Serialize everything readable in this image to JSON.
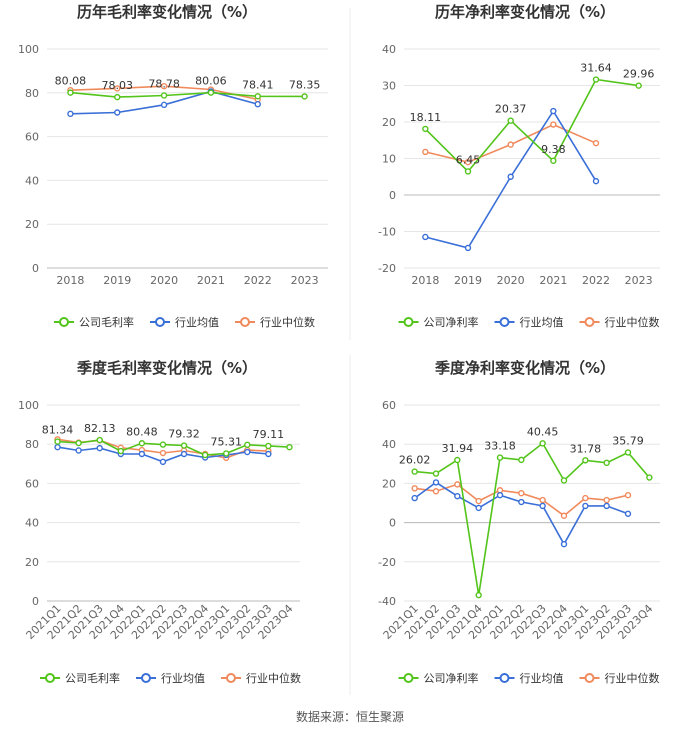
{
  "colors": {
    "company": "#52c41a",
    "industry_avg": "#3a6fd8",
    "industry_median": "#f08a5d",
    "grid": "#e6e6e6",
    "axis": "#bbbbbb",
    "text": "#333333",
    "tick": "#666666"
  },
  "chart_data": [
    {
      "type": "line",
      "title": "历年毛利率变化情况（%）",
      "categories": [
        "2018",
        "2019",
        "2020",
        "2021",
        "2022",
        "2023"
      ],
      "ylim": [
        0,
        100
      ],
      "yticks": [
        0,
        20,
        40,
        60,
        80,
        100
      ],
      "rotate_x_labels": false,
      "series": [
        {
          "name": "公司毛利率",
          "key": "company",
          "values": [
            80.08,
            78.03,
            78.78,
            80.06,
            78.41,
            78.35
          ]
        },
        {
          "name": "行业均值",
          "key": "industry_avg",
          "values": [
            70.4,
            71.0,
            74.5,
            80.6,
            74.8,
            null
          ]
        },
        {
          "name": "行业中位数",
          "key": "industry_median",
          "values": [
            81.2,
            82.0,
            83.0,
            81.5,
            77.0,
            null
          ]
        }
      ],
      "labels": [
        {
          "category": "2018",
          "text": "80.08"
        },
        {
          "category": "2019",
          "text": "78.03"
        },
        {
          "category": "2020",
          "text": "78.78"
        },
        {
          "category": "2021",
          "text": "80.06"
        },
        {
          "category": "2022",
          "text": "78.41"
        },
        {
          "category": "2023",
          "text": "78.35"
        }
      ],
      "legend": [
        "公司毛利率",
        "行业均值",
        "行业中位数"
      ]
    },
    {
      "type": "line",
      "title": "历年净利率变化情况（%）",
      "categories": [
        "2018",
        "2019",
        "2020",
        "2021",
        "2022",
        "2023"
      ],
      "ylim": [
        -20,
        40
      ],
      "yticks": [
        -20,
        -10,
        0,
        10,
        20,
        30,
        40
      ],
      "rotate_x_labels": false,
      "series": [
        {
          "name": "公司净利率",
          "key": "company",
          "values": [
            18.11,
            6.45,
            20.37,
            9.38,
            31.64,
            29.96
          ]
        },
        {
          "name": "行业均值",
          "key": "industry_avg",
          "values": [
            -11.5,
            -14.5,
            5.0,
            23.0,
            3.8,
            null
          ]
        },
        {
          "name": "行业中位数",
          "key": "industry_median",
          "values": [
            11.8,
            9.0,
            13.8,
            19.3,
            14.2,
            null
          ]
        }
      ],
      "labels": [
        {
          "category": "2018",
          "text": "18.11"
        },
        {
          "category": "2019",
          "text": "6.45"
        },
        {
          "category": "2020",
          "text": "20.37"
        },
        {
          "category": "2021",
          "text": "9.38"
        },
        {
          "category": "2022",
          "text": "31.64"
        },
        {
          "category": "2023",
          "text": "29.96"
        }
      ],
      "legend": [
        "公司净利率",
        "行业均值",
        "行业中位数"
      ]
    },
    {
      "type": "line",
      "title": "季度毛利率变化情况（%）",
      "categories": [
        "2021Q1",
        "2021Q2",
        "2021Q3",
        "2021Q4",
        "2022Q1",
        "2022Q2",
        "2022Q3",
        "2022Q4",
        "2023Q1",
        "2023Q2",
        "2023Q3",
        "2023Q4"
      ],
      "ylim": [
        0,
        100
      ],
      "yticks": [
        0,
        20,
        40,
        60,
        80,
        100
      ],
      "rotate_x_labels": true,
      "series": [
        {
          "name": "公司毛利率",
          "key": "company",
          "values": [
            81.34,
            80.6,
            82.13,
            76.5,
            80.48,
            79.8,
            79.32,
            74.5,
            75.31,
            79.7,
            79.11,
            78.5
          ]
        },
        {
          "name": "行业均值",
          "key": "industry_avg",
          "values": [
            78.5,
            76.8,
            78.0,
            75.0,
            75.0,
            71.0,
            75.0,
            73.2,
            74.5,
            76.0,
            75.0,
            null
          ]
        },
        {
          "name": "行业中位数",
          "key": "industry_median",
          "values": [
            82.5,
            80.8,
            82.0,
            78.2,
            77.0,
            75.5,
            76.8,
            75.0,
            73.0,
            77.0,
            76.5,
            null
          ]
        }
      ],
      "labels": [
        {
          "category": "2021Q1",
          "text": "81.34"
        },
        {
          "category": "2021Q3",
          "text": "82.13"
        },
        {
          "category": "2022Q1",
          "text": "80.48"
        },
        {
          "category": "2022Q3",
          "text": "79.32"
        },
        {
          "category": "2023Q1",
          "text": "75.31"
        },
        {
          "category": "2023Q3",
          "text": "79.11"
        }
      ],
      "legend": [
        "公司毛利率",
        "行业均值",
        "行业中位数"
      ]
    },
    {
      "type": "line",
      "title": "季度净利率变化情况（%）",
      "categories": [
        "2021Q1",
        "2021Q2",
        "2021Q3",
        "2021Q4",
        "2022Q1",
        "2022Q2",
        "2022Q3",
        "2022Q4",
        "2023Q1",
        "2023Q2",
        "2023Q3",
        "2023Q4"
      ],
      "ylim": [
        -40,
        60
      ],
      "yticks": [
        -40,
        -20,
        0,
        20,
        40,
        60
      ],
      "rotate_x_labels": true,
      "series": [
        {
          "name": "公司净利率",
          "key": "company",
          "values": [
            26.02,
            25.0,
            31.94,
            -37.0,
            33.18,
            32.0,
            40.45,
            21.5,
            31.78,
            30.5,
            35.79,
            23.0
          ]
        },
        {
          "name": "行业均值",
          "key": "industry_avg",
          "values": [
            12.5,
            20.5,
            13.5,
            7.5,
            14.0,
            10.5,
            8.5,
            -11.0,
            8.5,
            8.5,
            4.5,
            null
          ]
        },
        {
          "name": "行业中位数",
          "key": "industry_median",
          "values": [
            17.5,
            16.0,
            19.5,
            11.0,
            16.5,
            15.0,
            11.5,
            3.5,
            12.5,
            11.5,
            14.0,
            null
          ]
        }
      ],
      "labels": [
        {
          "category": "2021Q1",
          "text": "26.02"
        },
        {
          "category": "2021Q3",
          "text": "31.94"
        },
        {
          "category": "2022Q1",
          "text": "33.18"
        },
        {
          "category": "2022Q3",
          "text": "40.45"
        },
        {
          "category": "2023Q1",
          "text": "31.78"
        },
        {
          "category": "2023Q3",
          "text": "35.79"
        }
      ],
      "legend": [
        "公司净利率",
        "行业均值",
        "行业中位数"
      ]
    }
  ],
  "footer": {
    "source": "数据来源：恒生聚源"
  }
}
